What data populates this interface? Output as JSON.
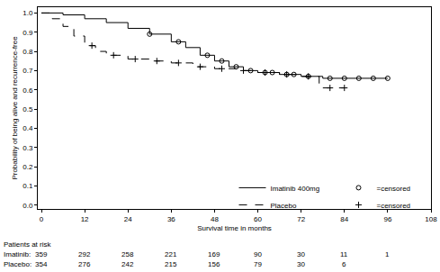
{
  "chart_data": {
    "type": "line",
    "x_label": "Survival time in months",
    "y_label": "Probability of being alive and recurrence-free",
    "xlim": [
      -1,
      108
    ],
    "xticks": [
      0,
      12,
      24,
      36,
      48,
      60,
      72,
      84,
      96,
      108
    ],
    "ylim": [
      -0.02,
      1.03
    ],
    "yticks": [
      {
        "value": 0,
        "label": "0.0"
      },
      0.1,
      0.2,
      0.3,
      0.4,
      0.5,
      0.6,
      0.7,
      0.8,
      0.9,
      {
        "value": 1,
        "label": "1.0"
      }
    ],
    "grid": false,
    "legend": "lower right",
    "series": [
      {
        "name": "Imatinib 400mg",
        "color": "#000000",
        "line_style": "solid",
        "x": [
          0,
          6,
          12,
          18,
          24,
          30,
          36,
          40,
          44,
          48,
          52,
          56,
          60,
          66,
          72,
          78,
          96
        ],
        "values": [
          1.0,
          0.99,
          0.97,
          0.95,
          0.92,
          0.89,
          0.85,
          0.82,
          0.78,
          0.75,
          0.72,
          0.7,
          0.69,
          0.68,
          0.67,
          0.66,
          0.66
        ],
        "censored": {
          "name": "=censored",
          "marker": "circle-open",
          "x": [
            30,
            38,
            46,
            50,
            54,
            58,
            62,
            64,
            68,
            70,
            74,
            80,
            84,
            88,
            92,
            96
          ],
          "values": [
            0.89,
            0.85,
            0.78,
            0.75,
            0.72,
            0.7,
            0.69,
            0.69,
            0.68,
            0.68,
            0.67,
            0.66,
            0.66,
            0.66,
            0.66,
            0.66
          ]
        }
      },
      {
        "name": "Placebo",
        "color": "#000000",
        "line_style": "dash",
        "x": [
          0,
          3,
          6,
          9,
          12,
          15,
          18,
          24,
          30,
          36,
          42,
          48,
          54,
          60,
          66,
          72,
          77,
          84
        ],
        "values": [
          1.0,
          0.97,
          0.93,
          0.88,
          0.83,
          0.8,
          0.78,
          0.76,
          0.75,
          0.74,
          0.72,
          0.71,
          0.7,
          0.69,
          0.68,
          0.67,
          0.61,
          0.61
        ],
        "censored": {
          "name": "=censored",
          "marker": "cross-thin-open",
          "x": [
            14,
            20,
            26,
            32,
            38,
            44,
            50,
            56,
            62,
            68,
            74,
            80,
            84
          ],
          "values": [
            0.83,
            0.78,
            0.76,
            0.75,
            0.74,
            0.72,
            0.71,
            0.7,
            0.69,
            0.68,
            0.67,
            0.61,
            0.61
          ]
        }
      }
    ],
    "at_risk": {
      "title": "Patients at risk",
      "x": [
        0,
        12,
        24,
        36,
        48,
        60,
        72,
        84,
        96
      ],
      "rows": [
        {
          "name": "Imatinib:",
          "values": [
            359,
            292,
            258,
            221,
            169,
            90,
            30,
            11,
            1
          ]
        },
        {
          "name": "Placebo:",
          "values": [
            354,
            276,
            242,
            215,
            156,
            79,
            30,
            6,
            null
          ]
        }
      ]
    }
  }
}
